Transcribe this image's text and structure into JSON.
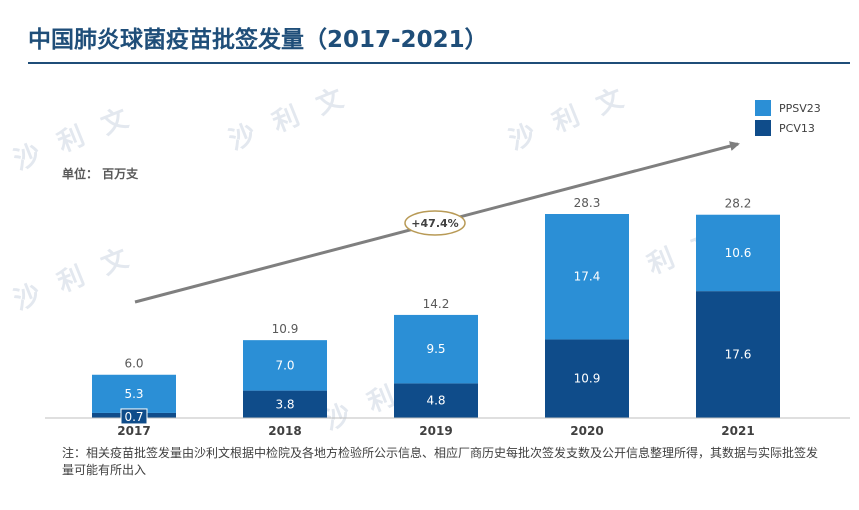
{
  "title": "中国肺炎球菌疫苗批签发量（2017-2021）",
  "unit_label": "单位：  百万支",
  "note": "注：相关疫苗批签发量由沙利文根据中检院及各地方检验所公示信息、相应厂商历史每批次签发支数及公开信息整理所得，其数据与实际批签发量可能有所出入",
  "watermark": "沙 利 文",
  "colors": {
    "ppsv23": "#2B8FD6",
    "pcv13": "#0F4C8A",
    "title": "#1F4E79",
    "trend": "#7F7F7F",
    "growth_border": "#B89A56"
  },
  "chart_data": {
    "type": "bar",
    "stacked": true,
    "categories": [
      "2017",
      "2018",
      "2019",
      "2020",
      "2021"
    ],
    "series": [
      {
        "name": "PCV13",
        "values": [
          0.7,
          3.8,
          4.8,
          10.9,
          17.6
        ]
      },
      {
        "name": "PPSV23",
        "values": [
          5.3,
          7.0,
          9.5,
          17.4,
          10.6
        ]
      }
    ],
    "totals": [
      6.0,
      10.9,
      14.2,
      28.3,
      28.2
    ],
    "legend": [
      {
        "name": "PPSV23"
      },
      {
        "name": "PCV13"
      }
    ],
    "legend_position": "top-right",
    "annotation": "+47.4%",
    "ylim": [
      0,
      28.3
    ],
    "grid": false
  }
}
